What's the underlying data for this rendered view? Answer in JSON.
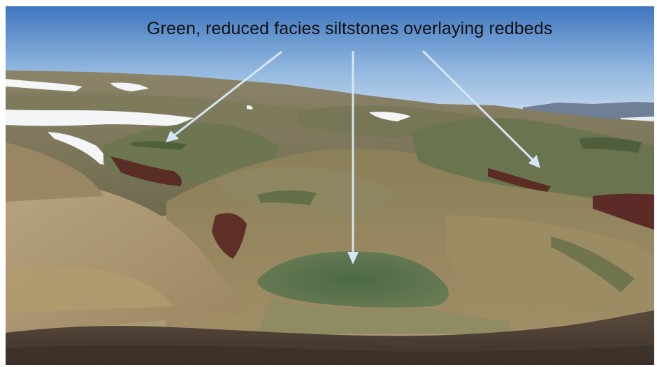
{
  "caption": "Green, reduced facies siltstones overlaying redbeds",
  "colors": {
    "sky_top": "#4f83c6",
    "sky_bottom": "#b9d1ea",
    "arrow": "#cfe3f3",
    "green_facies": "#5f7a4f",
    "redbed": "#5a2e26",
    "snow": "#f4f6f8",
    "slope_tan": "#a99572",
    "foreground_dark": "#4a3d33"
  },
  "icons": {
    "arrows": [
      "arrow-left-icon",
      "arrow-center-icon",
      "arrow-right-icon"
    ]
  }
}
